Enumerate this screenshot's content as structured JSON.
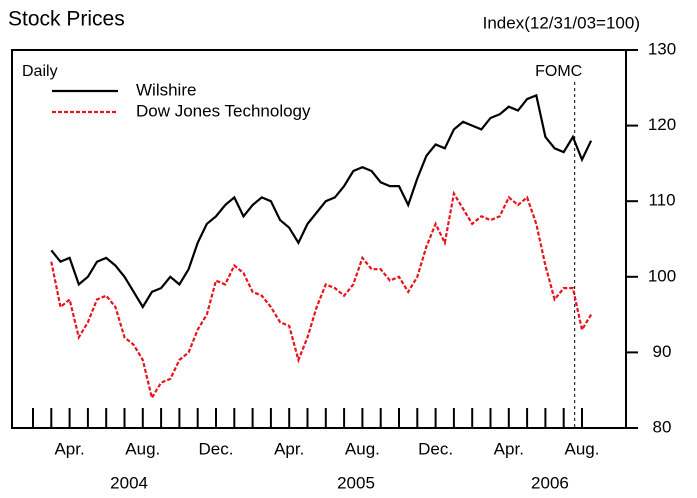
{
  "chart_data": {
    "type": "line",
    "title": "Stock Prices",
    "y_label": "Index(12/31/03=100)",
    "frequency": "Daily",
    "annotation": "FOMC",
    "categories": [
      null,
      null,
      null,
      null,
      "Apr.",
      null,
      null,
      null,
      null,
      null,
      null,
      null,
      "Aug.",
      null,
      null,
      null,
      null,
      null,
      null,
      null,
      "Dec.",
      null,
      null,
      null,
      null,
      null,
      null,
      null,
      "Apr.",
      null,
      null,
      null,
      null,
      null,
      null,
      null,
      "Aug.",
      null,
      null,
      null,
      null,
      null,
      null,
      null,
      "Dec.",
      null,
      null,
      null,
      null,
      null,
      null,
      null,
      "Apr.",
      null,
      null,
      null,
      null,
      null,
      null,
      null,
      "Aug.",
      null
    ],
    "x_groups": [
      "2004",
      "2005",
      "2006"
    ],
    "series": [
      {
        "name": "Wilshire",
        "color": "#000000",
        "dash": false,
        "values": [
          null,
          null,
          103.5,
          102,
          102.5,
          99,
          100,
          102,
          102.5,
          101.5,
          100,
          98,
          96,
          98,
          98.5,
          100,
          99,
          101,
          104.5,
          107,
          108,
          109.5,
          110.5,
          108,
          109.5,
          110.5,
          110,
          107.5,
          106.5,
          104.5,
          107,
          108.5,
          110,
          110.5,
          112,
          114,
          114.5,
          114,
          112.5,
          112,
          112,
          109.5,
          113,
          116,
          117.5,
          117,
          119.5,
          120.5,
          120,
          119.5,
          121,
          121.5,
          122.5,
          122,
          123.5,
          124,
          118.5,
          117,
          116.5,
          118.5,
          115.5,
          118
        ]
      },
      {
        "name": "Dow Jones Technology",
        "color": "#e8141c",
        "dash": true,
        "values": [
          null,
          null,
          102,
          96,
          97,
          92,
          94,
          97,
          97.5,
          96,
          92,
          91,
          89,
          84,
          86,
          86.5,
          89,
          90,
          93,
          95,
          99.5,
          99,
          101.5,
          100.5,
          98,
          97.5,
          96,
          94,
          93.5,
          89,
          92,
          96,
          99,
          98.5,
          97.5,
          99,
          102.5,
          101,
          101,
          99.5,
          100,
          98,
          100,
          104,
          107,
          104.5,
          111,
          109,
          107,
          108,
          107.5,
          108,
          110.5,
          109.5,
          110.5,
          107,
          101.5,
          97,
          98.5,
          98.5,
          93,
          95
        ]
      }
    ],
    "ylim": [
      80,
      130
    ],
    "yticks": [
      80,
      90,
      100,
      110,
      120,
      130
    ]
  }
}
